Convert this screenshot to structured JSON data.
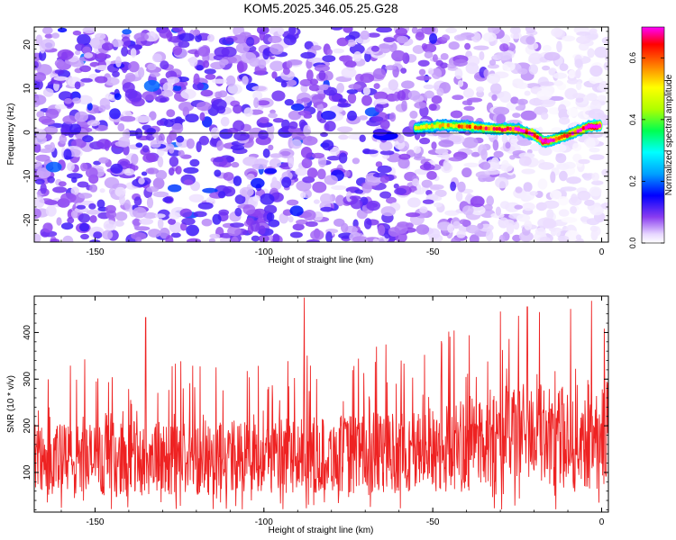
{
  "chart_data": [
    {
      "type": "heatmap",
      "title": "KOM5.2025.346.05.25.G28",
      "xlabel": "Height of straight line (km)",
      "ylabel": "Frequency (Hz)",
      "xlim": [
        -168,
        2
      ],
      "ylim": [
        -25,
        24
      ],
      "xticks": [
        -150,
        -100,
        -50,
        0
      ],
      "xtick_labels": [
        "-150",
        "-100",
        "-50",
        "0"
      ],
      "yticks": [
        -20,
        -10,
        0,
        10,
        20
      ],
      "ytick_labels": [
        "-20",
        "-10",
        "0",
        "10",
        "20"
      ],
      "colorbar": {
        "label": "Normalized spectral amplitude",
        "range": [
          0,
          0.7
        ],
        "ticks": [
          0.0,
          0.2,
          0.4,
          0.6
        ],
        "tick_labels": [
          "0.0",
          "0.2",
          "0.4",
          "0.6"
        ],
        "colors": [
          "#ffffff",
          "#e8d8ff",
          "#8a3df0",
          "#0000ff",
          "#00a0ff",
          "#00ffff",
          "#00ff50",
          "#b0ff00",
          "#ffff00",
          "#ff8000",
          "#ff0000",
          "#ff00ff"
        ]
      },
      "signal_track": {
        "description": "Strong coherent signal near 0 Hz",
        "x": [
          -55,
          -48,
          -40,
          -32,
          -25,
          -20,
          -17,
          -13,
          -8,
          -4,
          0
        ],
        "freq": [
          1.0,
          1.6,
          1.4,
          0.8,
          0.7,
          -0.5,
          -2.2,
          -1.4,
          0.0,
          1.3,
          1.5
        ],
        "amplitude": [
          0.35,
          0.4,
          0.45,
          0.5,
          0.55,
          0.6,
          0.7,
          0.5,
          0.55,
          0.65,
          0.7
        ]
      },
      "secondary_blob": {
        "x": -64,
        "freq": -0.8,
        "amplitude": 0.15
      },
      "noise_amplitude": 0.12
    },
    {
      "type": "line",
      "xlabel": "Height of straight line (km)",
      "ylabel": "SNR (10 * v/v)",
      "xlim": [
        -168,
        2
      ],
      "ylim": [
        15,
        478
      ],
      "xticks": [
        -150,
        -100,
        -50,
        0
      ],
      "xtick_labels": [
        "-150",
        "-100",
        "-50",
        "0"
      ],
      "yticks": [
        100,
        200,
        300,
        400
      ],
      "ytick_labels": [
        "100",
        "200",
        "300",
        "400"
      ],
      "series": [
        {
          "name": "SNR",
          "color": "#ee2222",
          "envelope_x": [
            -168,
            -130,
            -90,
            -55,
            -40,
            -25,
            -18,
            -10,
            2
          ],
          "baseline": [
            125,
            130,
            135,
            145,
            160,
            190,
            185,
            170,
            190
          ],
          "spread": [
            90,
            90,
            90,
            100,
            115,
            120,
            115,
            125,
            140
          ],
          "peaks": [
            {
              "x": -88,
              "y": 475
            },
            {
              "x": -135,
              "y": 432
            },
            {
              "x": -3,
              "y": 468
            },
            {
              "x": -22,
              "y": 455
            },
            {
              "x": -30,
              "y": 445
            }
          ]
        }
      ]
    }
  ]
}
